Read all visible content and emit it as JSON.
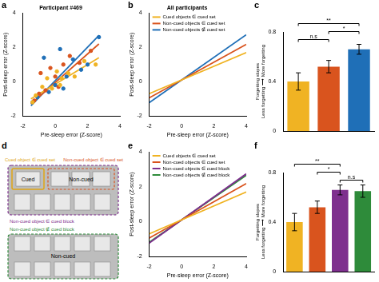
{
  "chart_data": [
    {
      "panel": "a",
      "type": "scatter",
      "title": "Participant #469",
      "xlabel": "Pre-sleep error (Z-score)",
      "ylabel": "Post-sleep error (Z-score)",
      "xlim": [
        -2,
        4
      ],
      "ylim": [
        -2,
        4
      ],
      "xticks": [
        -2,
        0,
        2,
        4
      ],
      "yticks": [
        -2,
        0,
        2,
        4
      ],
      "grid": false,
      "series": [
        {
          "color": "#f0b323",
          "x": [
            -1.4,
            -1.2,
            -0.8,
            -0.5,
            -0.2,
            0.1,
            0.3,
            0.4,
            0.8,
            1.2,
            1.8,
            2.5
          ],
          "values": [
            -1.2,
            -0.8,
            -0.3,
            0.2,
            -0.4,
            0.6,
            -0.2,
            0.2,
            0.5,
            0.3,
            1.2,
            1.0
          ],
          "fit_x": [
            -1.5,
            2.7
          ],
          "fit_values": [
            -1.0,
            1.4
          ]
        },
        {
          "color": "#d9541e",
          "x": [
            -1.3,
            -1.0,
            -0.9,
            -0.6,
            -0.3,
            0.0,
            0.2,
            0.5,
            0.9,
            1.5,
            2.2
          ],
          "values": [
            -1.1,
            -0.7,
            0.5,
            -0.5,
            0.8,
            0.3,
            -0.3,
            1.0,
            1.5,
            1.1,
            1.8
          ],
          "fit_x": [
            -1.5,
            2.7
          ],
          "fit_values": [
            -1.3,
            2.2
          ]
        },
        {
          "color": "#1f6fb7",
          "x": [
            -1.4,
            -1.1,
            -0.7,
            -0.4,
            0.0,
            0.3,
            0.5,
            0.7,
            1.1,
            1.6,
            2.0,
            2.7
          ],
          "values": [
            -1.2,
            -0.9,
            1.4,
            -0.6,
            -0.2,
            1.9,
            -0.4,
            0.3,
            1.3,
            0.7,
            1.0,
            2.6
          ],
          "fit_x": [
            -1.5,
            2.7
          ],
          "fit_values": [
            -1.4,
            2.7
          ]
        }
      ]
    },
    {
      "panel": "b",
      "type": "line",
      "title": "All participants",
      "xlabel": "Pre-sleep error (Z-score)",
      "ylabel": "Post-sleep error (Z-score)",
      "xlim": [
        -2,
        4
      ],
      "ylim": [
        -2,
        4
      ],
      "xticks": [
        -2,
        0,
        2,
        4
      ],
      "yticks": [
        -2,
        0,
        2,
        4
      ],
      "grid": false,
      "legend": "upper left",
      "x": [
        -2,
        4
      ],
      "series": [
        {
          "name": "Cued objects ∈ cued set",
          "color": "#f0b323",
          "values": [
            -0.7,
            1.7
          ]
        },
        {
          "name": "Non-cued objects ∈ cued set",
          "color": "#d9541e",
          "values": [
            -0.94,
            2.18
          ]
        },
        {
          "name": "Non-cued objects ∉ cued set",
          "color": "#1f6fb7",
          "values": [
            -1.22,
            2.74
          ]
        }
      ]
    },
    {
      "panel": "c",
      "type": "bar",
      "ylabel": "Forgetting slopes",
      "annotation": "Less forgetting ⟶ More forgetting",
      "categories": [
        null,
        null,
        null
      ],
      "values": [
        0.4,
        0.52,
        0.66
      ],
      "errors": [
        0.07,
        0.05,
        0.04
      ],
      "colors": [
        "#f0b323",
        "#d9541e",
        "#1f6fb7"
      ],
      "ylim": [
        0,
        0.8
      ],
      "yticks": [
        0,
        0.4,
        0.8
      ],
      "grid": false,
      "tick_labels": "y",
      "significance": [
        {
          "from": 0,
          "to": 1,
          "label": "n.s"
        },
        {
          "from": 1,
          "to": 2,
          "label": "*"
        },
        {
          "from": 0,
          "to": 2,
          "label": "**"
        }
      ]
    },
    {
      "panel": "e",
      "type": "line",
      "xlabel": "Pre-sleep error (Z-score)",
      "ylabel": "Post-sleep error (Z-score)",
      "xlim": [
        -2,
        4
      ],
      "ylim": [
        -2,
        4
      ],
      "xticks": [
        -2,
        0,
        2,
        4
      ],
      "yticks": [
        -2,
        0,
        2,
        4
      ],
      "grid": false,
      "legend": "upper left",
      "x": [
        -2,
        4
      ],
      "series": [
        {
          "name": "Cued objects ∈ cued set",
          "color": "#f0b323",
          "values": [
            -0.7,
            1.7
          ]
        },
        {
          "name": "Non-cued objects ∈ cued set",
          "color": "#d9541e",
          "values": [
            -0.94,
            2.18
          ]
        },
        {
          "name": "Non-cued objects ∈ cued block",
          "color": "#7e2f8e",
          "values": [
            -1.22,
            2.74
          ]
        },
        {
          "name": "Non-cued objects ∉ cued block",
          "color": "#2e8b3a",
          "values": [
            -1.18,
            2.66
          ]
        }
      ]
    },
    {
      "panel": "f",
      "type": "bar",
      "ylabel": "Forgetting slopes",
      "annotation": "Less forgetting ⟶ More forgetting",
      "categories": [
        null,
        null,
        null,
        null
      ],
      "values": [
        0.4,
        0.52,
        0.66,
        0.65
      ],
      "errors": [
        0.07,
        0.05,
        0.04,
        0.05
      ],
      "colors": [
        "#f0b323",
        "#d9541e",
        "#7e2f8e",
        "#2e8b3a"
      ],
      "ylim": [
        0,
        0.8
      ],
      "yticks": [
        0,
        0.4,
        0.8
      ],
      "grid": false,
      "tick_labels": "y",
      "significance": [
        {
          "from": 2,
          "to": 3,
          "label": "n.s"
        },
        {
          "from": 1,
          "to": 2,
          "label": "*"
        },
        {
          "from": 0,
          "to": 2,
          "label": "**"
        }
      ]
    }
  ],
  "diagram": {
    "panel": "d",
    "cued_set_label": "Cued object ∈ cued set",
    "noncued_set_label": "Non-cued object ∈ cued set",
    "cued_block_label": "Non-cued object ∈ cued block",
    "outside_block_label": "Non-cued object ∉ cued block",
    "cued_text": "Cued",
    "noncued_text": "Non-cued",
    "outside_text": "Non-cued"
  }
}
